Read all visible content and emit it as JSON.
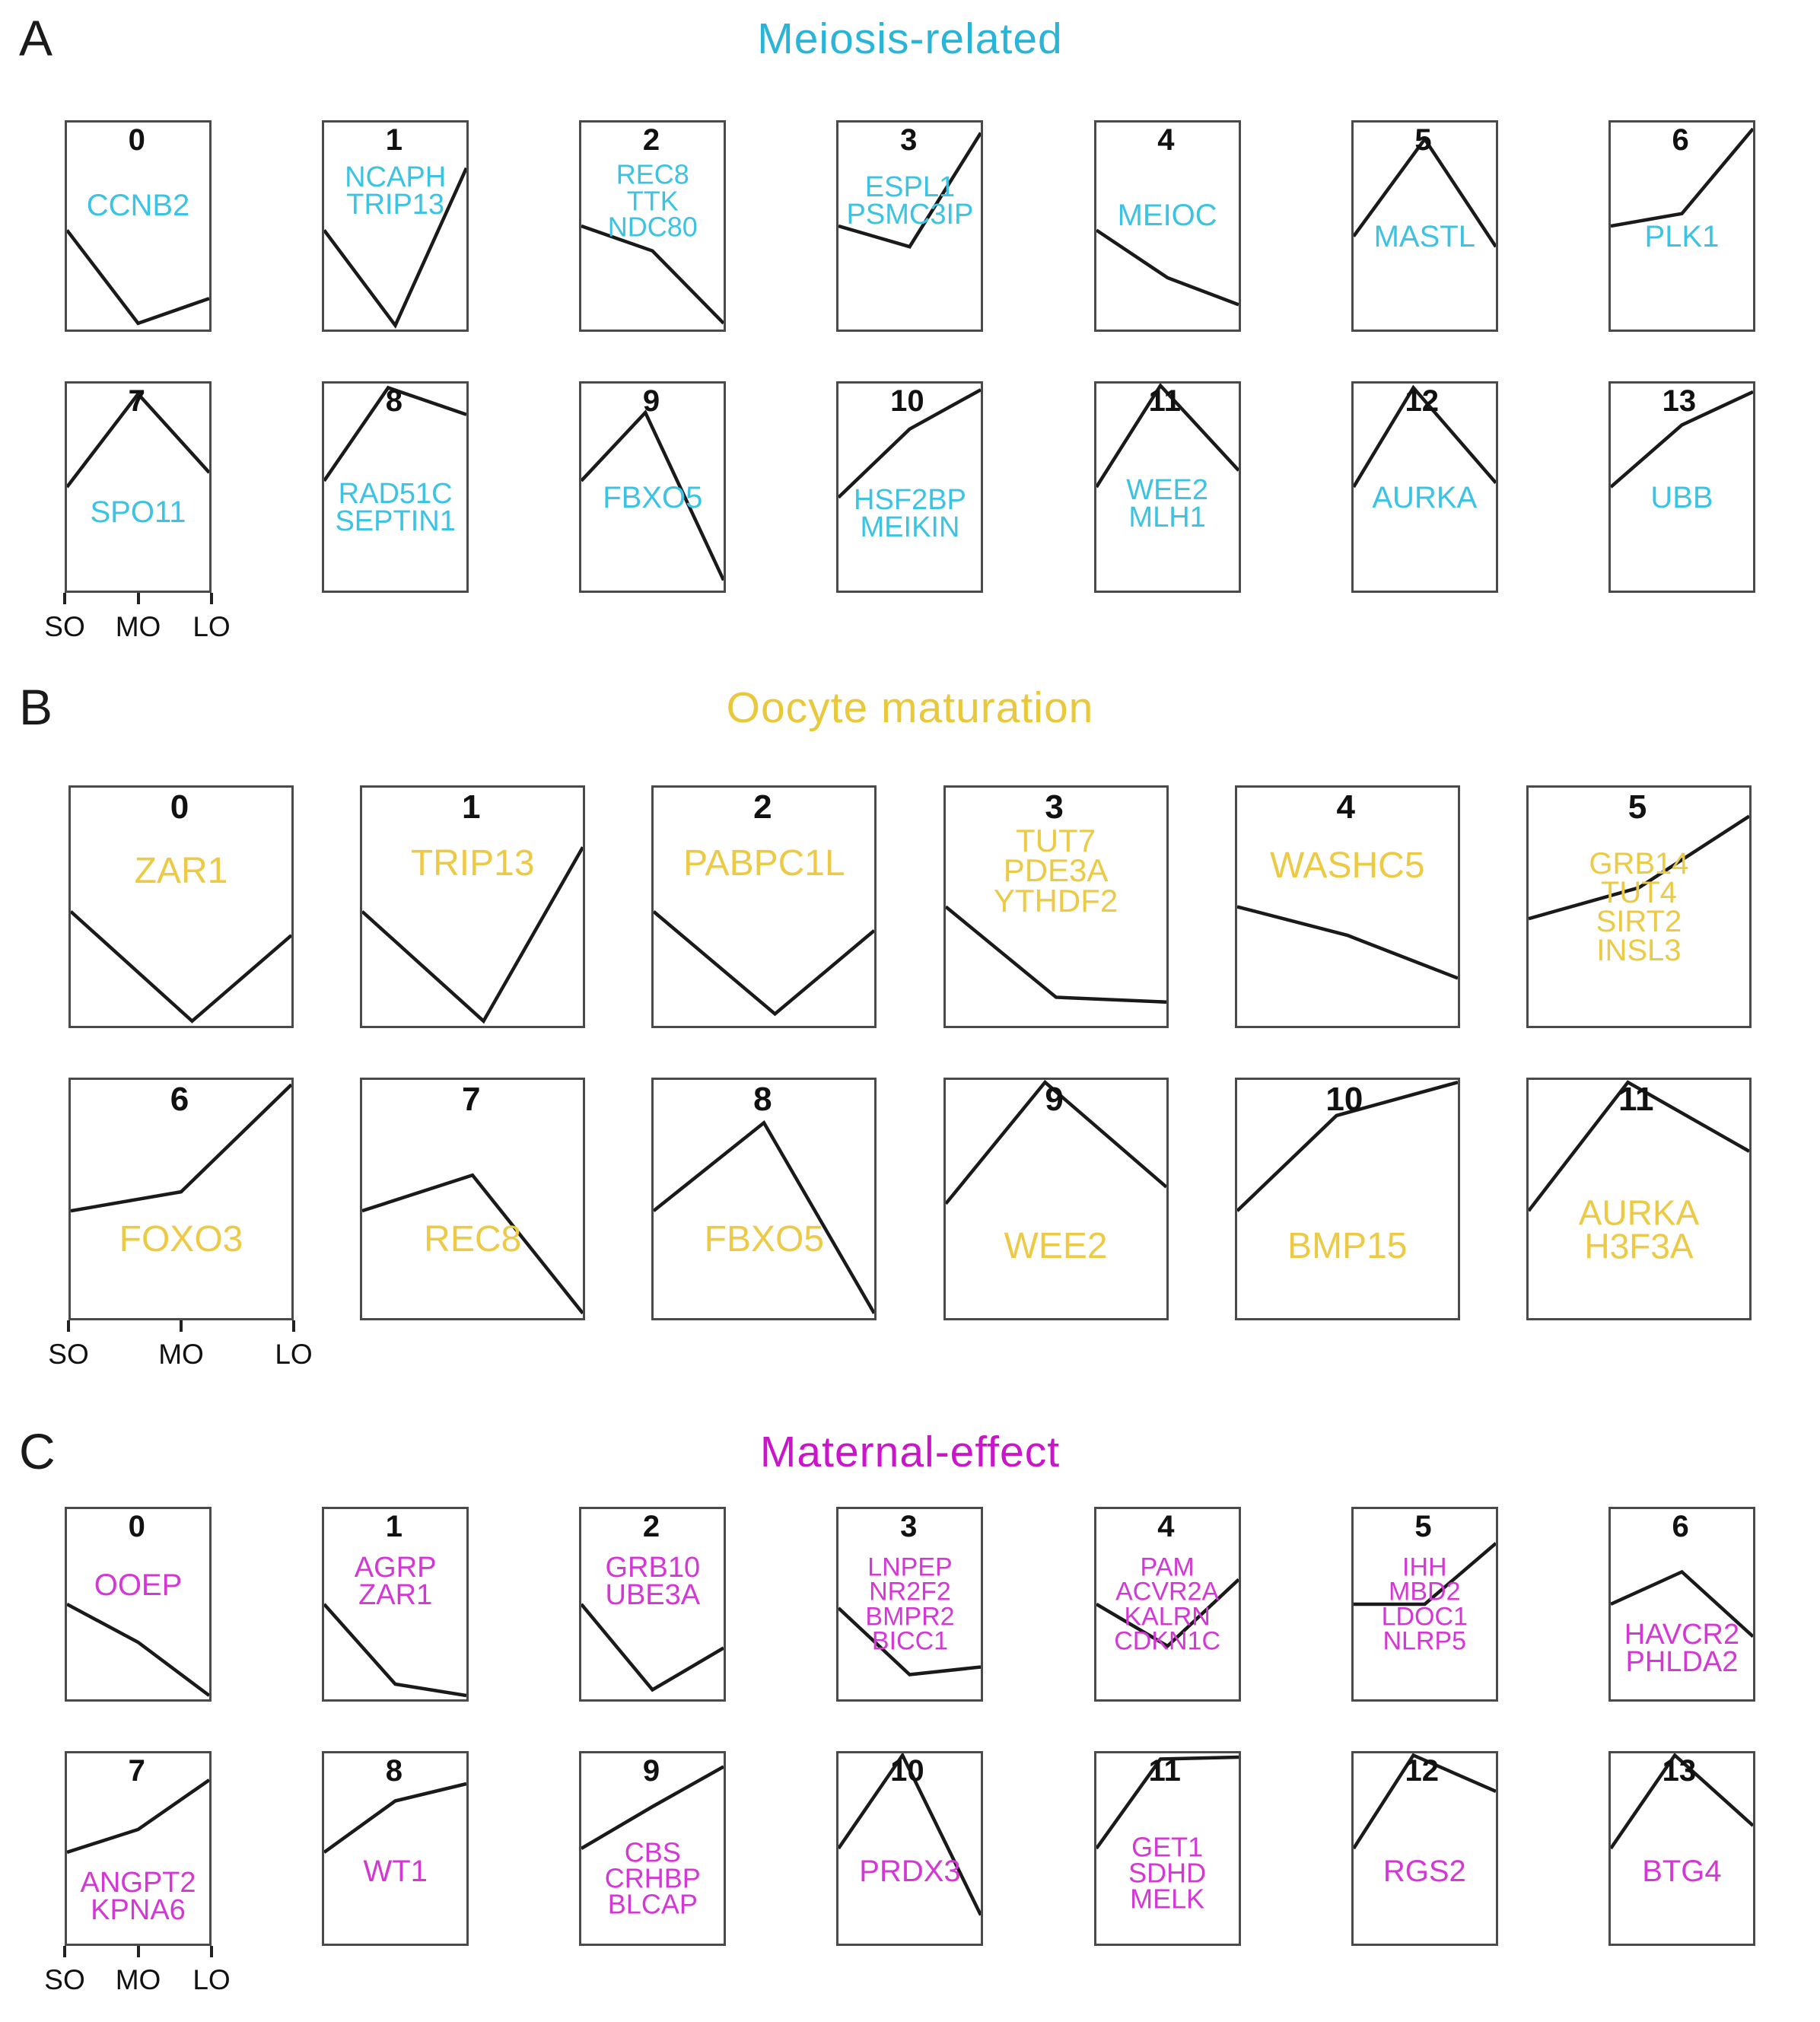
{
  "figure": {
    "background": "#ffffff",
    "line_color": "#1a1a1a",
    "x_axis_note": "shared x axis shown under first facet of last row in each panel"
  },
  "chart_data": [
    {
      "type": "line",
      "panel": "A",
      "title": "Meiosis-related",
      "title_color": "#29b4d8",
      "label_color": "#3cc3e3",
      "facets_per_row": 7,
      "x_categories": [
        "SO",
        "MO",
        "LO"
      ],
      "y_scale": "normalized expression 0-1 (estimated from plot)",
      "facets": [
        {
          "n": "0",
          "genes": [
            "CCNB2"
          ],
          "label_y": 0.4,
          "points": [
            [
              0,
              0.48
            ],
            [
              0.5,
              0.03
            ],
            [
              1,
              0.15
            ]
          ]
        },
        {
          "n": "1",
          "genes": [
            "NCAPH",
            "TRIP13"
          ],
          "label_y": 0.33,
          "points": [
            [
              0,
              0.48
            ],
            [
              0.5,
              0.02
            ],
            [
              1,
              0.78
            ]
          ]
        },
        {
          "n": "2",
          "genes": [
            "REC8",
            "TTK",
            "NDC80"
          ],
          "label_y": 0.38,
          "points": [
            [
              0,
              0.5
            ],
            [
              0.5,
              0.38
            ],
            [
              1,
              0.03
            ]
          ]
        },
        {
          "n": "3",
          "genes": [
            "ESPL1",
            "PSMC3IP"
          ],
          "label_y": 0.38,
          "points": [
            [
              0,
              0.5
            ],
            [
              0.5,
              0.4
            ],
            [
              1,
              0.95
            ]
          ]
        },
        {
          "n": "4",
          "genes": [
            "MEIOC"
          ],
          "label_y": 0.45,
          "points": [
            [
              0,
              0.48
            ],
            [
              0.5,
              0.25
            ],
            [
              1,
              0.12
            ]
          ]
        },
        {
          "n": "5",
          "genes": [
            "MASTL"
          ],
          "label_y": 0.55,
          "points": [
            [
              0,
              0.45
            ],
            [
              0.5,
              0.92
            ],
            [
              1,
              0.4
            ]
          ]
        },
        {
          "n": "6",
          "genes": [
            "PLK1"
          ],
          "label_y": 0.55,
          "points": [
            [
              0,
              0.5
            ],
            [
              0.5,
              0.56
            ],
            [
              1,
              0.97
            ]
          ]
        },
        {
          "n": "7",
          "genes": [
            "SPO11"
          ],
          "label_y": 0.62,
          "points": [
            [
              0,
              0.5
            ],
            [
              0.5,
              0.95
            ],
            [
              1,
              0.57
            ]
          ]
        },
        {
          "n": "8",
          "genes": [
            "RAD51C",
            "SEPTIN1"
          ],
          "label_y": 0.6,
          "points": [
            [
              0,
              0.53
            ],
            [
              0.45,
              0.98
            ],
            [
              1,
              0.85
            ]
          ]
        },
        {
          "n": "9",
          "genes": [
            "FBXO5"
          ],
          "label_y": 0.55,
          "points": [
            [
              0,
              0.53
            ],
            [
              0.45,
              0.86
            ],
            [
              1,
              0.05
            ]
          ]
        },
        {
          "n": "10",
          "genes": [
            "HSF2BP",
            "MEIKIN"
          ],
          "label_y": 0.63,
          "points": [
            [
              0,
              0.45
            ],
            [
              0.5,
              0.78
            ],
            [
              1,
              0.97
            ]
          ]
        },
        {
          "n": "11",
          "genes": [
            "WEE2",
            "MLH1"
          ],
          "label_y": 0.58,
          "points": [
            [
              0,
              0.5
            ],
            [
              0.45,
              0.99
            ],
            [
              1,
              0.58
            ]
          ]
        },
        {
          "n": "12",
          "genes": [
            "AURKA"
          ],
          "label_y": 0.55,
          "points": [
            [
              0,
              0.5
            ],
            [
              0.42,
              0.98
            ],
            [
              1,
              0.52
            ]
          ]
        },
        {
          "n": "13",
          "genes": [
            "UBB"
          ],
          "label_y": 0.55,
          "points": [
            [
              0,
              0.5
            ],
            [
              0.5,
              0.8
            ],
            [
              1,
              0.96
            ]
          ]
        }
      ]
    },
    {
      "type": "line",
      "panel": "B",
      "title": "Oocyte maturation",
      "title_color": "#e9c83c",
      "label_color": "#ecca45",
      "facets_per_row": 6,
      "x_categories": [
        "SO",
        "MO",
        "LO"
      ],
      "y_scale": "normalized expression 0-1 (estimated from plot)",
      "facets": [
        {
          "n": "0",
          "genes": [
            "ZAR1"
          ],
          "label_y": 0.35,
          "points": [
            [
              0,
              0.48
            ],
            [
              0.55,
              0.02
            ],
            [
              1,
              0.38
            ]
          ]
        },
        {
          "n": "1",
          "genes": [
            "TRIP13"
          ],
          "label_y": 0.32,
          "points": [
            [
              0,
              0.48
            ],
            [
              0.55,
              0.02
            ],
            [
              1,
              0.75
            ]
          ]
        },
        {
          "n": "2",
          "genes": [
            "PABPC1L"
          ],
          "label_y": 0.32,
          "points": [
            [
              0,
              0.48
            ],
            [
              0.55,
              0.05
            ],
            [
              1,
              0.4
            ]
          ]
        },
        {
          "n": "3",
          "genes": [
            "TUT7",
            "PDE3A",
            "YTHDF2"
          ],
          "label_y": 0.35,
          "points": [
            [
              0,
              0.5
            ],
            [
              0.5,
              0.12
            ],
            [
              1,
              0.1
            ]
          ]
        },
        {
          "n": "4",
          "genes": [
            "WASHC5"
          ],
          "label_y": 0.33,
          "points": [
            [
              0,
              0.5
            ],
            [
              0.5,
              0.38
            ],
            [
              1,
              0.2
            ]
          ]
        },
        {
          "n": "5",
          "genes": [
            "GRB14",
            "TUT4",
            "SIRT2",
            "INSL3"
          ],
          "label_y": 0.5,
          "points": [
            [
              0,
              0.45
            ],
            [
              0.5,
              0.58
            ],
            [
              1,
              0.88
            ]
          ]
        },
        {
          "n": "6",
          "genes": [
            "FOXO3"
          ],
          "label_y": 0.67,
          "points": [
            [
              0,
              0.45
            ],
            [
              0.5,
              0.53
            ],
            [
              1,
              0.98
            ]
          ]
        },
        {
          "n": "7",
          "genes": [
            "REC8"
          ],
          "label_y": 0.67,
          "points": [
            [
              0,
              0.45
            ],
            [
              0.5,
              0.6
            ],
            [
              1,
              0.02
            ]
          ]
        },
        {
          "n": "8",
          "genes": [
            "FBXO5"
          ],
          "label_y": 0.67,
          "points": [
            [
              0,
              0.45
            ],
            [
              0.5,
              0.82
            ],
            [
              1,
              0.02
            ]
          ]
        },
        {
          "n": "9",
          "genes": [
            "WEE2"
          ],
          "label_y": 0.7,
          "points": [
            [
              0,
              0.48
            ],
            [
              0.45,
              0.99
            ],
            [
              1,
              0.55
            ]
          ]
        },
        {
          "n": "10",
          "genes": [
            "BMP15"
          ],
          "label_y": 0.7,
          "points": [
            [
              0,
              0.45
            ],
            [
              0.45,
              0.85
            ],
            [
              1,
              0.99
            ]
          ]
        },
        {
          "n": "11",
          "genes": [
            "AURKA",
            "H3F3A"
          ],
          "label_y": 0.63,
          "points": [
            [
              0,
              0.45
            ],
            [
              0.45,
              0.99
            ],
            [
              1,
              0.7
            ]
          ]
        }
      ]
    },
    {
      "type": "line",
      "panel": "C",
      "title": "Maternal-effect",
      "title_color": "#c916c9",
      "label_color": "#d438d4",
      "facets_per_row": 7,
      "x_categories": [
        "SO",
        "MO",
        "LO"
      ],
      "y_scale": "normalized expression 0-1 (estimated from plot)",
      "facets": [
        {
          "n": "0",
          "genes": [
            "OOEP"
          ],
          "label_y": 0.4,
          "points": [
            [
              0,
              0.5
            ],
            [
              0.5,
              0.3
            ],
            [
              1,
              0.02
            ]
          ]
        },
        {
          "n": "1",
          "genes": [
            "AGRP",
            "ZAR1"
          ],
          "label_y": 0.38,
          "points": [
            [
              0,
              0.5
            ],
            [
              0.5,
              0.08
            ],
            [
              1,
              0.02
            ]
          ]
        },
        {
          "n": "2",
          "genes": [
            "GRB10",
            "UBE3A"
          ],
          "label_y": 0.38,
          "points": [
            [
              0,
              0.5
            ],
            [
              0.5,
              0.05
            ],
            [
              1,
              0.27
            ]
          ]
        },
        {
          "n": "3",
          "genes": [
            "LNPEP",
            "NR2F2",
            "BMPR2",
            "BICC1"
          ],
          "label_y": 0.5,
          "points": [
            [
              0,
              0.48
            ],
            [
              0.5,
              0.13
            ],
            [
              1,
              0.17
            ]
          ]
        },
        {
          "n": "4",
          "genes": [
            "PAM",
            "ACVR2A",
            "KALRN",
            "CDKN1C"
          ],
          "label_y": 0.5,
          "points": [
            [
              0,
              0.5
            ],
            [
              0.5,
              0.28
            ],
            [
              1,
              0.63
            ]
          ]
        },
        {
          "n": "5",
          "genes": [
            "IHH",
            "MBD2",
            "LDOC1",
            "NLRP5"
          ],
          "label_y": 0.5,
          "points": [
            [
              0,
              0.5
            ],
            [
              0.5,
              0.5
            ],
            [
              1,
              0.82
            ]
          ]
        },
        {
          "n": "6",
          "genes": [
            "HAVCR2",
            "PHLDA2"
          ],
          "label_y": 0.73,
          "points": [
            [
              0,
              0.5
            ],
            [
              0.5,
              0.67
            ],
            [
              1,
              0.33
            ]
          ]
        },
        {
          "n": "7",
          "genes": [
            "ANGPT2",
            "KPNA6"
          ],
          "label_y": 0.75,
          "points": [
            [
              0,
              0.48
            ],
            [
              0.5,
              0.6
            ],
            [
              1,
              0.86
            ]
          ]
        },
        {
          "n": "8",
          "genes": [
            "WT1"
          ],
          "label_y": 0.62,
          "points": [
            [
              0,
              0.48
            ],
            [
              0.5,
              0.75
            ],
            [
              1,
              0.84
            ]
          ]
        },
        {
          "n": "9",
          "genes": [
            "CBS",
            "CRHBP",
            "BLCAP"
          ],
          "label_y": 0.66,
          "points": [
            [
              0,
              0.5
            ],
            [
              0.5,
              0.72
            ],
            [
              1,
              0.93
            ]
          ]
        },
        {
          "n": "10",
          "genes": [
            "PRDX3"
          ],
          "label_y": 0.62,
          "points": [
            [
              0,
              0.5
            ],
            [
              0.45,
              0.99
            ],
            [
              1,
              0.15
            ]
          ]
        },
        {
          "n": "11",
          "genes": [
            "GET1",
            "SDHD",
            "MELK"
          ],
          "label_y": 0.63,
          "points": [
            [
              0,
              0.5
            ],
            [
              0.45,
              0.97
            ],
            [
              1,
              0.98
            ]
          ]
        },
        {
          "n": "12",
          "genes": [
            "RGS2"
          ],
          "label_y": 0.62,
          "points": [
            [
              0,
              0.5
            ],
            [
              0.42,
              0.99
            ],
            [
              1,
              0.8
            ]
          ]
        },
        {
          "n": "13",
          "genes": [
            "BTG4"
          ],
          "label_y": 0.62,
          "points": [
            [
              0,
              0.5
            ],
            [
              0.45,
              0.99
            ],
            [
              1,
              0.62
            ]
          ]
        }
      ]
    }
  ]
}
